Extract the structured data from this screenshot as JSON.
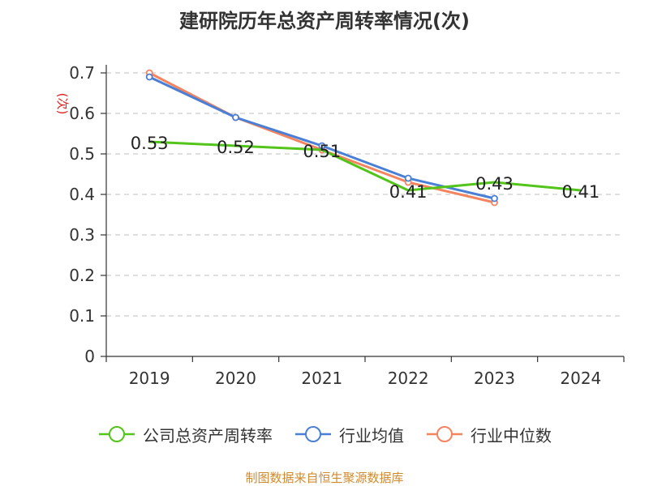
{
  "chart_data": {
    "type": "line",
    "title": "建研院历年总资产周转率情况(次)",
    "ylabel": "(次)",
    "xlabel": "",
    "categories": [
      "2019",
      "2020",
      "2021",
      "2022",
      "2023",
      "2024"
    ],
    "ylim": [
      0,
      0.7
    ],
    "yticks": [
      0,
      0.1,
      0.2,
      0.3,
      0.4,
      0.5,
      0.6,
      0.7
    ],
    "grid": true,
    "legend_position": "bottom",
    "series": [
      {
        "name": "公司总资产周转率",
        "color": "#52c41a",
        "values": [
          0.53,
          0.52,
          0.51,
          0.41,
          0.43,
          0.41
        ],
        "labels": [
          "0.53",
          "0.52",
          "0.51",
          "0.41",
          "0.43",
          "0.41"
        ]
      },
      {
        "name": "行业均值",
        "color": "#4a7fd6",
        "values": [
          0.69,
          0.59,
          0.52,
          0.44,
          0.39,
          null
        ]
      },
      {
        "name": "行业中位数",
        "color": "#f4845f",
        "values": [
          0.7,
          0.59,
          0.51,
          0.43,
          0.38,
          null
        ]
      }
    ]
  },
  "source": "制图数据来自恒生聚源数据库"
}
